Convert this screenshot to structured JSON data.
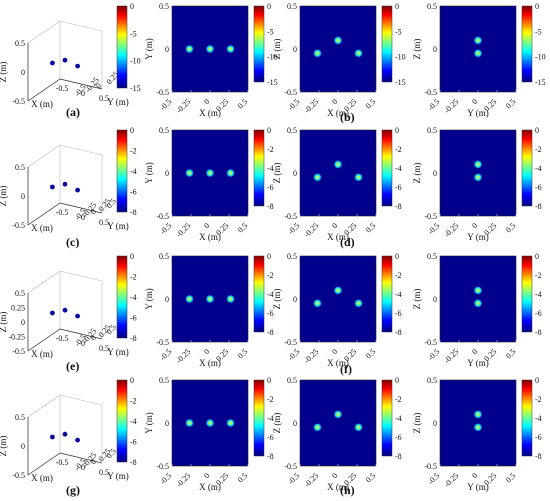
{
  "figure": {
    "panel_labels": [
      "(a)",
      "(b)",
      "(c)",
      "(d)",
      "(e)",
      "(f)",
      "(g)",
      "(h)"
    ]
  },
  "colormap": [
    "#000080",
    "#0000ff",
    "#00ffff",
    "#ffff00",
    "#ff0000",
    "#800000"
  ],
  "chart_data": [
    {
      "type": "heatmap",
      "view": "3d",
      "row": 0,
      "xlabel": "X (m)",
      "ylabel": "Y (m)",
      "zlabel": "Z (m)",
      "x_ticks": [
        "-0.5",
        "0",
        "0.5"
      ],
      "y_ticks": [
        "0.25",
        "0",
        "-0.25",
        "-0.5"
      ],
      "z_ticks": [
        "0.5",
        "0",
        "-0.5"
      ],
      "colorbar_ticks": [
        "0",
        "-5",
        "-10",
        "-15"
      ],
      "colorbar_range": [
        -15,
        0
      ],
      "points": [
        {
          "x": -0.3,
          "y": 0,
          "z": 0
        },
        {
          "x": 0,
          "y": 0,
          "z": 0.1
        },
        {
          "x": 0.3,
          "y": 0,
          "z": 0.05
        }
      ]
    },
    {
      "type": "heatmap",
      "view": "xy",
      "row": 0,
      "xlabel": "X (m)",
      "ylabel": "Y (m)",
      "x_ticks": [
        "-0.5",
        "-0.25",
        "0",
        "0.25",
        "0.5"
      ],
      "y_ticks": [
        "0.5",
        "0",
        "-0.5"
      ],
      "colorbar_ticks": [
        "0",
        "-5",
        "-10",
        "-15"
      ],
      "colorbar_range": [
        -15,
        0
      ],
      "points": [
        {
          "x": -0.27,
          "y": 0
        },
        {
          "x": 0,
          "y": 0
        },
        {
          "x": 0.27,
          "y": 0
        }
      ]
    },
    {
      "type": "heatmap",
      "view": "xz",
      "row": 0,
      "xlabel": "X (m)",
      "ylabel": "Z (m)",
      "x_ticks": [
        "-0.5",
        "-0.25",
        "0",
        "0.25",
        "0.5"
      ],
      "y_ticks": [
        "0.5",
        "0",
        "-0.5"
      ],
      "colorbar_ticks": [
        "0",
        "-5",
        "-10",
        "-15"
      ],
      "colorbar_range": [
        -15,
        0
      ],
      "points": [
        {
          "x": -0.27,
          "y": -0.05
        },
        {
          "x": 0,
          "y": 0.1
        },
        {
          "x": 0.27,
          "y": -0.05
        }
      ]
    },
    {
      "type": "heatmap",
      "view": "yz",
      "row": 0,
      "xlabel": "Y (m)",
      "ylabel": "Z (m)",
      "x_ticks": [
        "-0.5",
        "-0.25",
        "0",
        "0.25",
        "0.5"
      ],
      "y_ticks": [
        "0.5",
        "0",
        "-0.5"
      ],
      "colorbar_ticks": [
        "0",
        "-5",
        "-10",
        "-15"
      ],
      "colorbar_range": [
        -15,
        0
      ],
      "points": [
        {
          "x": 0,
          "y": 0.1
        },
        {
          "x": 0,
          "y": -0.05
        }
      ]
    },
    {
      "type": "heatmap",
      "view": "3d",
      "row": 1,
      "xlabel": "X (m)",
      "ylabel": "Y (m)",
      "zlabel": "Z (m)",
      "x_ticks": [
        "-0.5",
        "0",
        "0.5"
      ],
      "y_ticks": [
        "0.5",
        "0.25",
        "0",
        "-0.25",
        "-0.5"
      ],
      "z_ticks": [
        "0.5",
        "0",
        "-0.5"
      ],
      "colorbar_ticks": [
        "0",
        "-2",
        "-4",
        "-6",
        "-8"
      ],
      "colorbar_range": [
        -8,
        0
      ],
      "points": [
        {
          "x": -0.3,
          "y": 0,
          "z": 0
        },
        {
          "x": 0,
          "y": 0,
          "z": 0.1
        },
        {
          "x": 0.3,
          "y": 0,
          "z": 0.05
        }
      ]
    },
    {
      "type": "heatmap",
      "view": "xy",
      "row": 1,
      "xlabel": "X (m)",
      "ylabel": "Y (m)",
      "x_ticks": [
        "-0.5",
        "-0.25",
        "0",
        "0.25",
        "0.5"
      ],
      "y_ticks": [
        "0.5",
        "0",
        "-0.5"
      ],
      "colorbar_ticks": [
        "0",
        "-2",
        "-4",
        "-6",
        "-8"
      ],
      "colorbar_range": [
        -8,
        0
      ],
      "points": [
        {
          "x": -0.27,
          "y": 0
        },
        {
          "x": 0,
          "y": 0
        },
        {
          "x": 0.27,
          "y": 0
        }
      ]
    },
    {
      "type": "heatmap",
      "view": "xz",
      "row": 1,
      "xlabel": "X (m)",
      "ylabel": "Z (m)",
      "x_ticks": [
        "-0.5",
        "-0.25",
        "0",
        "0.25",
        "0.5"
      ],
      "y_ticks": [
        "0.5",
        "0",
        "-0.5"
      ],
      "colorbar_ticks": [
        "0",
        "-2",
        "-4",
        "-6",
        "-8"
      ],
      "colorbar_range": [
        -8,
        0
      ],
      "points": [
        {
          "x": -0.27,
          "y": -0.05
        },
        {
          "x": 0,
          "y": 0.1
        },
        {
          "x": 0.27,
          "y": -0.05
        }
      ]
    },
    {
      "type": "heatmap",
      "view": "yz",
      "row": 1,
      "xlabel": "Y (m)",
      "ylabel": "Z (m)",
      "x_ticks": [
        "-0.5",
        "-0.25",
        "0",
        "0.25",
        "0.5"
      ],
      "y_ticks": [
        "0.5",
        "0",
        "-0.5"
      ],
      "colorbar_ticks": [
        "0",
        "-2",
        "-4",
        "-6",
        "-8"
      ],
      "colorbar_range": [
        -8,
        0
      ],
      "points": [
        {
          "x": 0,
          "y": 0.1
        },
        {
          "x": 0,
          "y": -0.05
        }
      ]
    },
    {
      "type": "heatmap",
      "view": "3d",
      "row": 2,
      "xlabel": "X (m)",
      "ylabel": "Y (m)",
      "zlabel": "Z (m)",
      "x_ticks": [
        "-0.5",
        "0",
        "0.5"
      ],
      "y_ticks": [
        "0.5",
        "0.25",
        "0",
        "-0.25",
        "-0.5"
      ],
      "z_ticks": [
        "0.5",
        "0.25",
        "0",
        "-0.25",
        "-0.5"
      ],
      "colorbar_ticks": [
        "0",
        "-2",
        "-4",
        "-6",
        "-8"
      ],
      "colorbar_range": [
        -8,
        0
      ],
      "points": [
        {
          "x": -0.3,
          "y": 0,
          "z": 0
        },
        {
          "x": 0,
          "y": 0,
          "z": 0.1
        },
        {
          "x": 0.3,
          "y": 0,
          "z": 0.05
        }
      ]
    },
    {
      "type": "heatmap",
      "view": "xy",
      "row": 2,
      "xlabel": "X (m)",
      "ylabel": "Y (m)",
      "x_ticks": [
        "-0.5",
        "-0.25",
        "0",
        "0.25",
        "0.5"
      ],
      "y_ticks": [
        "0.5",
        "0",
        "-0.5"
      ],
      "colorbar_ticks": [
        "0",
        "-2",
        "-4",
        "-6",
        "-8"
      ],
      "colorbar_range": [
        -8,
        0
      ],
      "points": [
        {
          "x": -0.27,
          "y": 0
        },
        {
          "x": 0,
          "y": 0
        },
        {
          "x": 0.27,
          "y": 0
        }
      ]
    },
    {
      "type": "heatmap",
      "view": "xz",
      "row": 2,
      "xlabel": "X (m)",
      "ylabel": "Z (m)",
      "x_ticks": [
        "-0.5",
        "-0.25",
        "0",
        "0.25",
        "0.5"
      ],
      "y_ticks": [
        "0.5",
        "0",
        "-0.5"
      ],
      "colorbar_ticks": [
        "0",
        "-2",
        "-4",
        "-6",
        "-8"
      ],
      "colorbar_range": [
        -8,
        0
      ],
      "points": [
        {
          "x": -0.27,
          "y": -0.05
        },
        {
          "x": 0,
          "y": 0.1
        },
        {
          "x": 0.27,
          "y": -0.05
        }
      ]
    },
    {
      "type": "heatmap",
      "view": "yz",
      "row": 2,
      "xlabel": "Y (m)",
      "ylabel": "Z (m)",
      "x_ticks": [
        "-0.5",
        "-0.25",
        "0",
        "0.25",
        "0.5"
      ],
      "y_ticks": [
        "0.5",
        "0",
        "-0.5"
      ],
      "colorbar_ticks": [
        "0",
        "-2",
        "-4",
        "-6",
        "-8"
      ],
      "colorbar_range": [
        -8,
        0
      ],
      "points": [
        {
          "x": 0,
          "y": 0.1
        },
        {
          "x": 0,
          "y": -0.05
        }
      ]
    },
    {
      "type": "heatmap",
      "view": "3d",
      "row": 3,
      "xlabel": "X (m)",
      "ylabel": "Y (m)",
      "zlabel": "Z (m)",
      "x_ticks": [
        "-0.5",
        "0",
        "0.5"
      ],
      "y_ticks": [
        "0.5",
        "0.25",
        "0",
        "-0.25",
        "-0.5"
      ],
      "z_ticks": [
        "0.5",
        "0",
        "-0.5"
      ],
      "colorbar_ticks": [
        "0",
        "-2",
        "-4",
        "-6",
        "-8"
      ],
      "colorbar_range": [
        -8,
        0
      ],
      "points": [
        {
          "x": -0.3,
          "y": 0,
          "z": 0
        },
        {
          "x": 0,
          "y": 0,
          "z": 0.1
        },
        {
          "x": 0.3,
          "y": 0,
          "z": 0.05
        }
      ]
    },
    {
      "type": "heatmap",
      "view": "xy",
      "row": 3,
      "xlabel": "X (m)",
      "ylabel": "Y (m)",
      "x_ticks": [
        "-0.5",
        "-0.25",
        "0",
        "0.25",
        "0.5"
      ],
      "y_ticks": [
        "0.5",
        "0",
        "-0.5"
      ],
      "colorbar_ticks": [
        "0",
        "-2",
        "-4",
        "-6",
        "-8"
      ],
      "colorbar_range": [
        -8,
        0
      ],
      "points": [
        {
          "x": -0.27,
          "y": 0
        },
        {
          "x": 0,
          "y": 0
        },
        {
          "x": 0.27,
          "y": 0
        }
      ]
    },
    {
      "type": "heatmap",
      "view": "xz",
      "row": 3,
      "xlabel": "X (m)",
      "ylabel": "Z (m)",
      "x_ticks": [
        "-0.5",
        "-0.25",
        "0",
        "0.25",
        "0.5"
      ],
      "y_ticks": [
        "0.5",
        "0",
        "-0.5"
      ],
      "colorbar_ticks": [
        "0",
        "-2",
        "-4",
        "-6",
        "-8"
      ],
      "colorbar_range": [
        -8,
        0
      ],
      "points": [
        {
          "x": -0.27,
          "y": -0.05
        },
        {
          "x": 0,
          "y": 0.1
        },
        {
          "x": 0.27,
          "y": -0.05
        }
      ]
    },
    {
      "type": "heatmap",
      "view": "yz",
      "row": 3,
      "xlabel": "Y (m)",
      "ylabel": "Z (m)",
      "x_ticks": [
        "-0.5",
        "-0.25",
        "0",
        "0.25",
        "0.5"
      ],
      "y_ticks": [
        "0.5",
        "0",
        "-0.5"
      ],
      "colorbar_ticks": [
        "0",
        "-2",
        "-4",
        "-6",
        "-8"
      ],
      "colorbar_range": [
        -8,
        0
      ],
      "points": [
        {
          "x": 0,
          "y": 0.1
        },
        {
          "x": 0,
          "y": -0.05
        }
      ]
    }
  ]
}
